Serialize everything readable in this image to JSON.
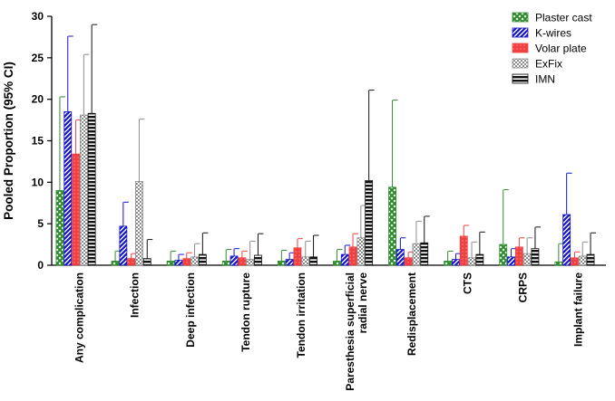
{
  "chart_data": {
    "type": "bar",
    "ylabel": "Pooled Proportion (95%  CI)",
    "xlabel": "",
    "ylim": [
      0,
      30
    ],
    "yticks": [
      0,
      5,
      10,
      15,
      20,
      25,
      30
    ],
    "grid": false,
    "legend_position": "top-right",
    "error_bars": "95% CI",
    "categories": [
      "Any complication",
      "Infection",
      "Deep infection",
      "Tendon rupture",
      "Tendon irritation",
      "Paresthesia superficial radial nerve",
      "Redisplacement",
      "CTS",
      "CRPS",
      "Implant failure"
    ],
    "series": [
      {
        "name": "Plaster cast",
        "color": "#2e8b2e",
        "pattern": "green-crosshatch",
        "values": [
          9.0,
          0.5,
          0.5,
          0.5,
          0.5,
          0.5,
          9.4,
          0.5,
          2.5,
          0.4
        ],
        "upper": [
          20.3,
          1.7,
          1.7,
          1.9,
          1.8,
          1.9,
          19.9,
          1.7,
          9.1,
          2.6
        ]
      },
      {
        "name": "K-wires",
        "color": "#1414c8",
        "pattern": "blue-diagonal-stripes",
        "values": [
          18.5,
          4.7,
          0.6,
          1.1,
          0.7,
          1.3,
          1.9,
          0.7,
          1.0,
          6.1
        ],
        "upper": [
          27.6,
          7.6,
          1.3,
          2.0,
          1.5,
          2.4,
          3.3,
          1.4,
          2.0,
          11.1
        ]
      },
      {
        "name": "Volar plate",
        "color": "#f04040",
        "pattern": "red-dotted",
        "values": [
          13.4,
          0.8,
          0.8,
          0.9,
          2.1,
          2.2,
          0.9,
          3.5,
          2.2,
          0.9
        ],
        "upper": [
          17.5,
          1.4,
          1.5,
          1.7,
          3.2,
          3.8,
          1.6,
          4.8,
          3.3,
          1.6
        ]
      },
      {
        "name": "ExFix",
        "color": "#8c8c8c",
        "pattern": "grey-checkerboard",
        "values": [
          18.1,
          10.1,
          1.0,
          0.7,
          1.0,
          3.3,
          2.6,
          0.9,
          1.4,
          1.1
        ],
        "upper": [
          25.4,
          17.6,
          2.6,
          2.9,
          2.9,
          7.2,
          5.3,
          2.8,
          3.3,
          2.8
        ]
      },
      {
        "name": "IMN",
        "color": "#111111",
        "pattern": "black-horizontal-stripes",
        "values": [
          18.3,
          0.8,
          1.3,
          1.2,
          1.0,
          10.2,
          2.7,
          1.3,
          2.0,
          1.3
        ],
        "upper": [
          29.0,
          3.1,
          3.9,
          3.8,
          3.6,
          21.1,
          5.9,
          4.0,
          4.6,
          3.9
        ]
      }
    ]
  }
}
